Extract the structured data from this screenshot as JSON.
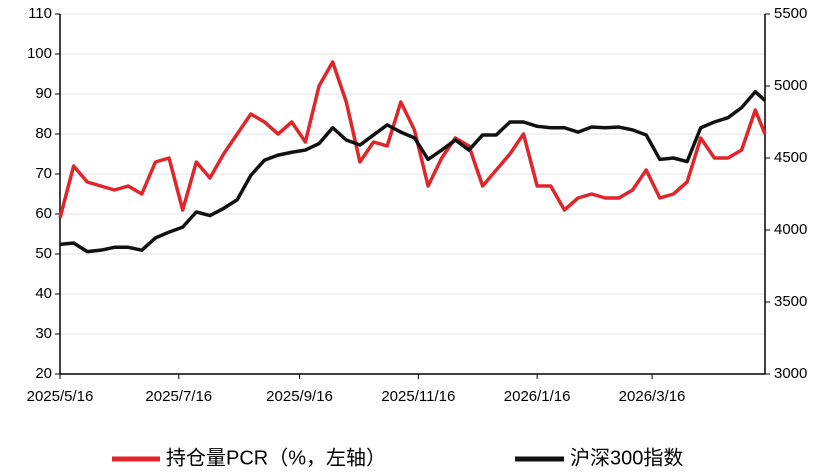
{
  "chart_data": {
    "type": "line",
    "x": [
      "2025/5/16",
      "2025/5/23",
      "2025/5/30",
      "2025/6/6",
      "2025/6/13",
      "2025/6/20",
      "2025/6/27",
      "2025/7/4",
      "2025/7/11",
      "2025/7/18",
      "2025/7/25",
      "2025/8/1",
      "2025/8/8",
      "2025/8/15",
      "2025/8/22",
      "2025/8/29",
      "2025/9/5",
      "2025/9/12",
      "2025/9/19",
      "2025/9/26",
      "2025/10/3",
      "2025/10/10",
      "2025/10/17",
      "2025/10/24",
      "2025/10/31",
      "2025/11/7",
      "2025/11/14",
      "2025/11/21",
      "2025/11/28",
      "2025/12/5",
      "2025/12/12",
      "2025/12/19",
      "2025/12/26",
      "2026/1/2",
      "2026/1/9",
      "2026/1/16",
      "2026/1/23",
      "2026/1/30",
      "2026/2/6",
      "2026/2/13",
      "2026/2/20",
      "2026/2/27",
      "2026/3/6",
      "2026/3/13",
      "2026/3/20",
      "2026/3/27",
      "2026/4/3",
      "2026/4/10",
      "2026/4/17",
      "2026/4/24",
      "2026/5/1",
      "2026/5/8",
      "2026/5/13"
    ],
    "series": [
      {
        "name": "持仓量PCR（%，左轴）",
        "color": "#e0262b",
        "values": [
          59,
          72,
          68,
          67,
          66,
          67,
          65,
          73,
          74,
          61,
          73,
          69,
          75,
          80,
          85,
          83,
          80,
          83,
          78,
          92,
          98,
          88,
          73,
          78,
          77,
          88,
          81,
          67,
          74,
          79,
          77,
          67,
          71,
          75,
          80,
          67,
          67,
          61,
          64,
          65,
          64,
          64,
          66,
          71,
          64,
          65,
          68,
          79,
          74,
          74,
          76,
          86,
          80
        ]
      },
      {
        "name": "沪深300指数",
        "color": "#111111",
        "axis": "y2",
        "values": [
          3900,
          3910,
          3850,
          3860,
          3880,
          3880,
          3860,
          3945,
          3985,
          4020,
          4125,
          4100,
          4150,
          4210,
          4380,
          4485,
          4520,
          4540,
          4555,
          4600,
          4710,
          4625,
          4590,
          4660,
          4730,
          4680,
          4640,
          4490,
          4555,
          4625,
          4555,
          4660,
          4660,
          4750,
          4750,
          4720,
          4710,
          4710,
          4680,
          4715,
          4710,
          4715,
          4695,
          4660,
          4490,
          4500,
          4475,
          4710,
          4750,
          4780,
          4850,
          4960,
          4900
        ]
      }
    ],
    "xlim": [
      "2025/5/16",
      "2026/5/13"
    ],
    "xticks": [
      "2025/5/16",
      "2025/7/16",
      "2025/9/16",
      "2025/11/16",
      "2026/1/16",
      "2026/3/16"
    ],
    "ylim": [
      20,
      110
    ],
    "yticks": [
      20,
      30,
      40,
      50,
      60,
      70,
      80,
      90,
      100,
      110
    ],
    "y2lim": [
      3000,
      5500
    ],
    "y2ticks": [
      3000,
      3500,
      4000,
      4500,
      5000,
      5500
    ],
    "grid": true,
    "legend": "bottom"
  }
}
